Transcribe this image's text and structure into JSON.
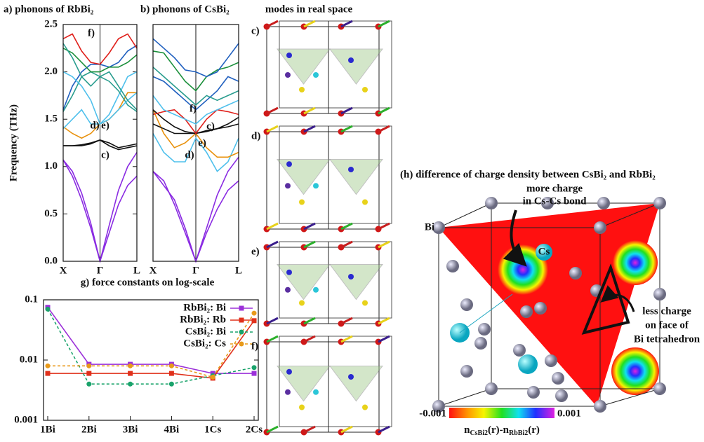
{
  "chart_data": [
    {
      "type": "line",
      "title": "a) phonons of RbBi₂",
      "ylabel": "Frequency (THz)",
      "x": [
        0,
        0.125,
        0.25,
        0.375,
        0.5,
        0.625,
        0.75,
        0.875,
        1
      ],
      "xlim": [
        0,
        1
      ],
      "xticks": [
        {
          "value": 0,
          "label": "X"
        },
        {
          "value": 0.5,
          "label": "Γ"
        },
        {
          "value": 1,
          "label": "L"
        }
      ],
      "ylim": [
        0,
        2.5
      ],
      "yticks": [
        {
          "value": 0,
          "label": "0.0"
        },
        0.5,
        {
          "value": 1,
          "label": "1.0"
        },
        1.5,
        {
          "value": 2,
          "label": "2.0"
        },
        2.5
      ],
      "series": [
        {
          "color": "#8a2be2",
          "values": [
            1.07,
            0.9,
            0.65,
            0.35,
            0,
            0.3,
            0.6,
            0.8,
            0.9
          ]
        },
        {
          "color": "#8a2be2",
          "values": [
            1.07,
            0.95,
            0.72,
            0.4,
            0,
            0.38,
            0.75,
            1.0,
            1.15
          ]
        },
        {
          "color": "#111111",
          "values": [
            1.22,
            1.22,
            1.23,
            1.25,
            1.28,
            1.22,
            1.18,
            1.2,
            1.22
          ]
        },
        {
          "color": "#111111",
          "values": [
            1.22,
            1.22,
            1.22,
            1.24,
            1.28,
            1.25,
            1.2,
            1.22,
            1.24
          ]
        },
        {
          "color": "#e8900a",
          "values": [
            1.42,
            1.35,
            1.3,
            1.35,
            1.45,
            1.5,
            1.6,
            1.78,
            1.78
          ]
        },
        {
          "color": "#4fc0ec",
          "values": [
            1.4,
            1.5,
            1.6,
            1.45,
            1.45,
            1.55,
            1.75,
            1.95,
            2.0
          ]
        },
        {
          "color": "#2a9d8f",
          "values": [
            1.58,
            1.75,
            1.95,
            2.0,
            1.95,
            1.9,
            1.8,
            1.65,
            1.58
          ]
        },
        {
          "color": "#1f5fbf",
          "values": [
            1.6,
            1.85,
            2.0,
            2.08,
            2.08,
            2.05,
            2.1,
            2.22,
            2.28
          ]
        },
        {
          "color": "#4fc0ec",
          "values": [
            2.0,
            1.95,
            1.85,
            1.7,
            1.45,
            1.5,
            1.6,
            1.7,
            1.78
          ]
        },
        {
          "color": "#e0201b",
          "values": [
            2.35,
            2.4,
            2.22,
            2.1,
            2.08,
            2.2,
            2.35,
            2.4,
            2.25
          ]
        },
        {
          "color": "#1a8f3a",
          "values": [
            2.25,
            2.2,
            2.1,
            2.0,
            2.0,
            2.05,
            2.05,
            2.1,
            2.18
          ]
        },
        {
          "color": "#2a9d8f",
          "values": [
            2.3,
            2.15,
            1.95,
            1.85,
            1.95,
            2.0,
            1.85,
            1.7,
            1.6
          ]
        }
      ],
      "annotations": [
        {
          "text": "f)",
          "color": "#e0201b"
        },
        {
          "text": "d)",
          "color": "#1f4fd8"
        },
        {
          "text": "e)",
          "color": "#e8700a"
        },
        {
          "text": "c)",
          "color": "#111111"
        }
      ]
    },
    {
      "type": "line",
      "title": "b) phonons of CsBi₂",
      "x": [
        0,
        0.125,
        0.25,
        0.375,
        0.5,
        0.625,
        0.75,
        0.875,
        1
      ],
      "xlim": [
        0,
        1
      ],
      "xticks": [
        {
          "value": 0,
          "label": "X"
        },
        {
          "value": 0.5,
          "label": "Γ"
        },
        {
          "value": 1,
          "label": "L"
        }
      ],
      "ylim": [
        0,
        2.5
      ],
      "series": [
        {
          "color": "#8a2be2",
          "values": [
            0.95,
            0.85,
            0.6,
            0.3,
            0,
            0.3,
            0.55,
            0.75,
            0.85
          ]
        },
        {
          "color": "#8a2be2",
          "values": [
            0.95,
            0.8,
            0.65,
            0.35,
            0,
            0.35,
            0.7,
            0.95,
            1.1
          ]
        },
        {
          "color": "#4fc0ec",
          "values": [
            1.35,
            1.15,
            1.05,
            1.05,
            1.3,
            1.15,
            0.95,
            1.05,
            1.3
          ]
        },
        {
          "color": "#e8900a",
          "values": [
            1.6,
            1.35,
            1.2,
            1.25,
            1.35,
            1.2,
            1.1,
            1.1,
            1.15
          ]
        },
        {
          "color": "#111111",
          "values": [
            1.45,
            1.4,
            1.35,
            1.35,
            1.35,
            1.38,
            1.4,
            1.42,
            1.45
          ]
        },
        {
          "color": "#111111",
          "values": [
            1.6,
            1.5,
            1.42,
            1.37,
            1.35,
            1.37,
            1.4,
            1.45,
            1.52
          ]
        },
        {
          "color": "#e0201b",
          "values": [
            1.55,
            1.58,
            1.6,
            1.5,
            1.35,
            1.5,
            1.6,
            1.58,
            1.55
          ]
        },
        {
          "color": "#4fc0ec",
          "values": [
            1.75,
            1.6,
            1.55,
            1.5,
            1.45,
            1.55,
            1.6,
            1.65,
            1.7
          ]
        },
        {
          "color": "#1f5fbf",
          "values": [
            1.95,
            1.9,
            1.8,
            1.7,
            1.6,
            1.7,
            1.8,
            1.95,
            1.9
          ]
        },
        {
          "color": "#2a9d8f",
          "values": [
            2.05,
            1.95,
            1.85,
            1.75,
            1.65,
            1.75,
            1.7,
            1.75,
            1.8
          ]
        },
        {
          "color": "#1a8f3a",
          "values": [
            2.22,
            2.2,
            2.05,
            1.9,
            1.8,
            1.95,
            2.02,
            2.05,
            2.1
          ]
        },
        {
          "color": "#1f5fbf",
          "values": [
            2.35,
            2.25,
            2.15,
            2.02,
            2.0,
            1.95,
            2.0,
            2.15,
            2.3
          ]
        }
      ],
      "annotations": [
        {
          "text": "f)",
          "color": "#e0201b"
        },
        {
          "text": "c)",
          "color": "#111111"
        },
        {
          "text": "e)",
          "color": "#e8700a"
        },
        {
          "text": "d)",
          "color": "#1f4fd8"
        }
      ]
    },
    {
      "type": "line",
      "title": "g) force constants on log-scale",
      "categories": [
        "1Bi",
        "2Bi",
        "3Bi",
        "4Bi",
        "1Cs",
        "2Cs"
      ],
      "ylog": true,
      "ylim": [
        0.001,
        0.1
      ],
      "yticks": [
        0.001,
        0.01,
        0.1
      ],
      "series": [
        {
          "name": "RbBi₂: Bi",
          "color": "#9b30d9",
          "marker": "square",
          "linestyle": "solid",
          "values": [
            0.075,
            0.0085,
            0.0085,
            0.0085,
            0.006,
            0.006
          ]
        },
        {
          "name": "RbBi₂: Rb",
          "color": "#e0301b",
          "marker": "square",
          "linestyle": "solid",
          "values": [
            0.006,
            0.006,
            0.006,
            0.006,
            0.005,
            0.045
          ]
        },
        {
          "name": "CsBi₂: Bi",
          "color": "#1aa36b",
          "marker": "circle",
          "linestyle": "dashed",
          "values": [
            0.07,
            0.004,
            0.004,
            0.004,
            0.0055,
            0.0075
          ]
        },
        {
          "name": "CsBi₂: Cs",
          "color": "#e89a1a",
          "marker": "circle",
          "linestyle": "dashed",
          "values": [
            0.008,
            0.008,
            0.008,
            0.008,
            0.0052,
            0.06
          ]
        }
      ]
    }
  ],
  "modes_panel": {
    "title": "modes in real space",
    "labels": [
      "c)",
      "d)",
      "e)",
      "f)"
    ]
  },
  "charge_panel": {
    "title": "(h) difference of charge density between CsBi₂ and RbBi₂",
    "note_top": [
      "more charge",
      "in Cs-Cs bond"
    ],
    "cs_label": "Cs",
    "bi_label": "Bi",
    "note_right": [
      "less charge",
      "on face of",
      "Bi tetrahedron"
    ],
    "colorbar": {
      "min": -0.001,
      "max": 0.001
    },
    "colorbar_label": [
      "n",
      "CsBi2",
      "(r)-n",
      "RbBi2",
      "(r)"
    ]
  }
}
